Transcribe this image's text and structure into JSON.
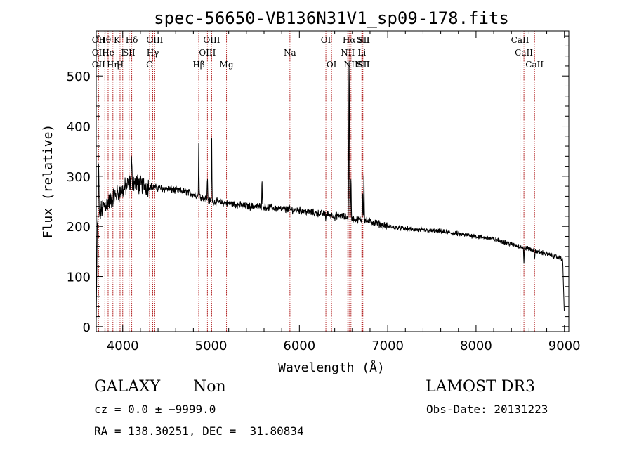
{
  "chart_data": {
    "type": "line",
    "title": "spec-56650-VB136N31V1_sp09-178.fits",
    "xlabel": "Wavelength (Å)",
    "ylabel": "Flux (relative)",
    "xlim": [
      3700,
      9050
    ],
    "ylim": [
      -10,
      590
    ],
    "x_ticks": [
      4000,
      5000,
      6000,
      7000,
      8000,
      9000
    ],
    "x_tick_labels": [
      "4000",
      "5000",
      "6000",
      "7000",
      "8000",
      "9000"
    ],
    "y_ticks": [
      0,
      100,
      200,
      300,
      400,
      500
    ],
    "y_tick_labels": [
      "0",
      "100",
      "200",
      "300",
      "400",
      "500"
    ],
    "continuum": [
      [
        3700,
        15
      ],
      [
        3712,
        205
      ],
      [
        3740,
        225
      ],
      [
        3780,
        240
      ],
      [
        3850,
        250
      ],
      [
        3920,
        262
      ],
      [
        4000,
        272
      ],
      [
        4100,
        290
      ],
      [
        4200,
        283
      ],
      [
        4300,
        280
      ],
      [
        4400,
        276
      ],
      [
        4500,
        275
      ],
      [
        4600,
        272
      ],
      [
        4700,
        270
      ],
      [
        4800,
        264
      ],
      [
        4900,
        258
      ],
      [
        5000,
        250
      ],
      [
        5100,
        248
      ],
      [
        5200,
        246
      ],
      [
        5300,
        243
      ],
      [
        5400,
        240
      ],
      [
        5500,
        240
      ],
      [
        5600,
        239
      ],
      [
        5700,
        237
      ],
      [
        5800,
        234
      ],
      [
        5900,
        233
      ],
      [
        6000,
        232
      ],
      [
        6100,
        229
      ],
      [
        6200,
        226
      ],
      [
        6300,
        225
      ],
      [
        6400,
        222
      ],
      [
        6500,
        220
      ],
      [
        6600,
        215
      ],
      [
        6700,
        213
      ],
      [
        6800,
        210
      ],
      [
        7000,
        200
      ],
      [
        7200,
        195
      ],
      [
        7400,
        192
      ],
      [
        7600,
        190
      ],
      [
        7800,
        185
      ],
      [
        8000,
        180
      ],
      [
        8200,
        175
      ],
      [
        8400,
        165
      ],
      [
        8600,
        155
      ],
      [
        8800,
        145
      ],
      [
        8980,
        135
      ],
      [
        9000,
        20
      ]
    ],
    "peaks": [
      {
        "x": 3727,
        "y": 330,
        "w": 4
      },
      {
        "x": 4100,
        "y": 330,
        "w": 5
      },
      {
        "x": 4340,
        "y": 275,
        "w": 4
      },
      {
        "x": 4861,
        "y": 365,
        "w": 4
      },
      {
        "x": 4959,
        "y": 300,
        "w": 4
      },
      {
        "x": 5007,
        "y": 380,
        "w": 4
      },
      {
        "x": 5577,
        "y": 300,
        "w": 4
      },
      {
        "x": 6300,
        "y": 215,
        "w": 4
      },
      {
        "x": 6563,
        "y": 535,
        "w": 5
      },
      {
        "x": 6584,
        "y": 300,
        "w": 4
      },
      {
        "x": 6717,
        "y": 270,
        "w": 4
      },
      {
        "x": 6731,
        "y": 310,
        "w": 4
      }
    ],
    "dips": [
      {
        "x": 6400,
        "y": 210,
        "w": 4
      },
      {
        "x": 8542,
        "y": 125,
        "w": 4
      },
      {
        "x": 8662,
        "y": 130,
        "w": 4
      }
    ],
    "line_markers": [
      {
        "x": 3727,
        "top": "OII",
        "mid": "OII",
        "bot": "OII"
      },
      {
        "x": 3798,
        "top": "Hθ"
      },
      {
        "x": 3835,
        "mid": "He"
      },
      {
        "x": 3889,
        "bot": "Hη"
      },
      {
        "x": 3934,
        "top": "K"
      },
      {
        "x": 3970,
        "bot": "H"
      },
      {
        "x": 4000,
        "mid": "I"
      },
      {
        "x": 4072,
        "mid": "SII"
      },
      {
        "x": 4102,
        "top": "Hδ"
      },
      {
        "x": 4304,
        "bot": "G"
      },
      {
        "x": 4340,
        "mid": "Hγ"
      },
      {
        "x": 4363,
        "top": "OIII"
      },
      {
        "x": 4861,
        "bot": "Hβ"
      },
      {
        "x": 4959,
        "mid": "OIII"
      },
      {
        "x": 5007,
        "top": "OIII"
      },
      {
        "x": 5175,
        "bot": "Mg"
      },
      {
        "x": 5893,
        "mid": "Na"
      },
      {
        "x": 6300,
        "top": "OI"
      },
      {
        "x": 6364,
        "bot": "OI"
      },
      {
        "x": 6548,
        "mid": "NII"
      },
      {
        "x": 6563,
        "top": "Hα"
      },
      {
        "x": 6584,
        "bot": "NII"
      },
      {
        "x": 6707,
        "mid": "Li"
      },
      {
        "x": 6717,
        "top": "SII",
        "bot": "SII"
      },
      {
        "x": 6731,
        "top": "SII",
        "bot": "SII"
      },
      {
        "x": 8498,
        "top": "CaII"
      },
      {
        "x": 8542,
        "mid": "CaII"
      },
      {
        "x": 8662,
        "bot": "CaII"
      }
    ]
  },
  "info": {
    "class": "GALAXY",
    "subclass": "Non",
    "survey": "LAMOST DR3",
    "cz_line": "cz = 0.0 ± −9999.0",
    "obs_date": "Obs-Date: 20131223",
    "coords": "RA = 138.30251, DEC =  31.80834"
  },
  "colors": {
    "marker": "#b22222",
    "spectrum": "#000000"
  }
}
